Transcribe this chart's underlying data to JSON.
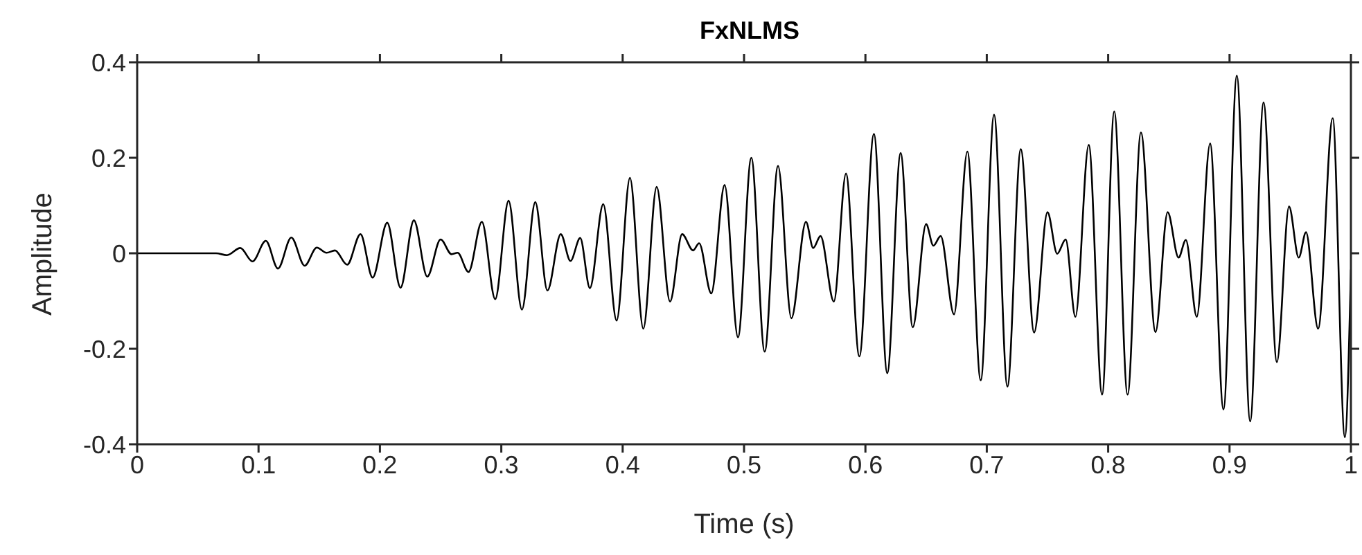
{
  "chart_data": {
    "type": "line",
    "title": "FxNLMS",
    "xlabel": "Time (s)",
    "ylabel": "Amplitude",
    "xlim": [
      0,
      1
    ],
    "ylim": [
      -0.4,
      0.4
    ],
    "xticks": [
      0,
      0.1,
      0.2,
      0.3,
      0.4,
      0.5,
      0.6,
      0.7,
      0.8,
      0.9,
      1
    ],
    "yticks": [
      -0.4,
      -0.2,
      0,
      0.2,
      0.4
    ],
    "grid": false,
    "legend": false,
    "marker": "none",
    "line_style": "solid",
    "x": [
      0,
      0.065,
      0.074,
      0.085,
      0.095,
      0.106,
      0.116,
      0.127,
      0.138,
      0.148,
      0.156,
      0.163,
      0.173,
      0.184,
      0.194,
      0.206,
      0.217,
      0.228,
      0.239,
      0.25,
      0.259,
      0.264,
      0.273,
      0.284,
      0.295,
      0.306,
      0.317,
      0.328,
      0.338,
      0.349,
      0.357,
      0.365,
      0.373,
      0.384,
      0.395,
      0.406,
      0.417,
      0.428,
      0.439,
      0.449,
      0.458,
      0.463,
      0.473,
      0.484,
      0.495,
      0.506,
      0.517,
      0.528,
      0.539,
      0.551,
      0.557,
      0.563,
      0.574,
      0.584,
      0.595,
      0.607,
      0.618,
      0.629,
      0.639,
      0.65,
      0.656,
      0.662,
      0.673,
      0.684,
      0.695,
      0.706,
      0.717,
      0.728,
      0.739,
      0.75,
      0.758,
      0.765,
      0.773,
      0.784,
      0.795,
      0.805,
      0.816,
      0.827,
      0.839,
      0.849,
      0.858,
      0.864,
      0.873,
      0.884,
      0.895,
      0.906,
      0.917,
      0.928,
      0.939,
      0.949,
      0.957,
      0.963,
      0.973,
      0.985,
      0.995,
      1.0
    ],
    "series": [
      {
        "color": "#000000",
        "values": [
          0,
          0,
          -0.004,
          0.011,
          -0.017,
          0.026,
          -0.032,
          0.033,
          -0.026,
          0.012,
          0.001,
          0.006,
          -0.024,
          0.04,
          -0.051,
          0.064,
          -0.072,
          0.069,
          -0.049,
          0.029,
          -0.002,
          0.001,
          -0.039,
          0.066,
          -0.096,
          0.11,
          -0.118,
          0.107,
          -0.078,
          0.04,
          -0.016,
          0.032,
          -0.073,
          0.103,
          -0.141,
          0.158,
          -0.158,
          0.139,
          -0.101,
          0.04,
          0.006,
          0.021,
          -0.084,
          0.143,
          -0.176,
          0.2,
          -0.206,
          0.183,
          -0.136,
          0.066,
          0.011,
          0.036,
          -0.101,
          0.167,
          -0.216,
          0.25,
          -0.251,
          0.21,
          -0.155,
          0.061,
          0.016,
          0.036,
          -0.128,
          0.213,
          -0.266,
          0.29,
          -0.279,
          0.218,
          -0.166,
          0.086,
          -0.001,
          0.029,
          -0.133,
          0.227,
          -0.296,
          0.297,
          -0.296,
          0.253,
          -0.165,
          0.086,
          -0.009,
          0.028,
          -0.133,
          0.23,
          -0.327,
          0.372,
          -0.352,
          0.316,
          -0.228,
          0.098,
          -0.009,
          0.044,
          -0.158,
          0.283,
          -0.385,
          -0.034
        ]
      }
    ]
  }
}
